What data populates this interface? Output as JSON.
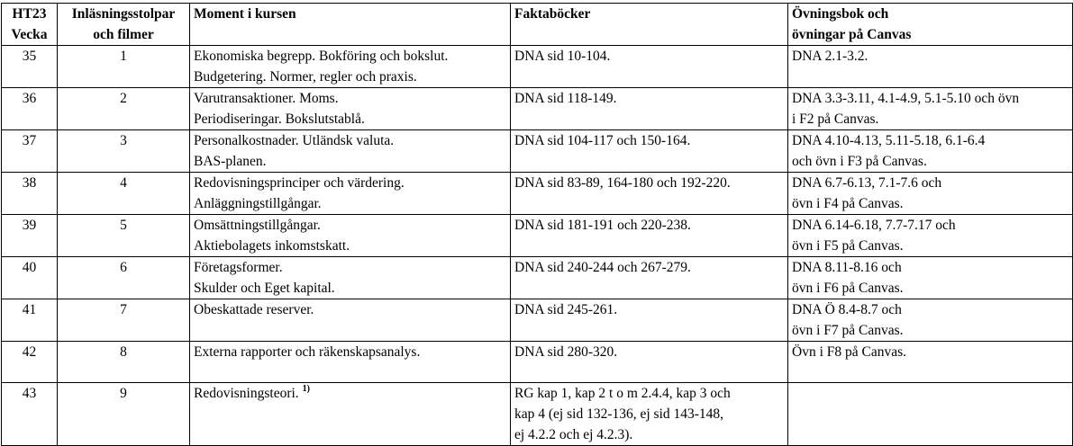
{
  "header": {
    "col1": [
      "HT23",
      "Vecka"
    ],
    "col2": [
      "Inläsningsstolpar",
      "och filmer"
    ],
    "col3": "Moment i kursen",
    "col4": "Faktaböcker",
    "col5": [
      "Övningsbok och",
      "övningar på Canvas"
    ]
  },
  "rows": [
    {
      "week": "35",
      "part": "1",
      "moment": [
        "Ekonomiska begrepp. Bokföring och bokslut.",
        "Budgetering. Normer, regler och praxis."
      ],
      "books": [
        "DNA sid 10-104."
      ],
      "exercises": [
        "DNA 2.1-3.2."
      ]
    },
    {
      "week": "36",
      "part": "2",
      "moment": [
        "Varutransaktioner. Moms.",
        "Periodiseringar. Bokslutstablå."
      ],
      "books": [
        "DNA sid 118-149."
      ],
      "exercises": [
        "DNA 3.3-3.11, 4.1-4.9, 5.1-5.10 och övn",
        "i F2 på Canvas."
      ]
    },
    {
      "week": "37",
      "part": "3",
      "moment": [
        "Personalkostnader. Utländsk valuta.",
        "BAS-planen."
      ],
      "books": [
        "DNA sid 104-117 och 150-164."
      ],
      "exercises": [
        "DNA 4.10-4.13, 5.11-5.18, 6.1-6.4",
        "och övn i F3 på Canvas."
      ]
    },
    {
      "week": "38",
      "part": "4",
      "moment": [
        "Redovisningsprinciper och värdering.",
        "Anläggningstillgångar."
      ],
      "books": [
        "DNA sid 83-89, 164-180 och 192-220."
      ],
      "exercises": [
        "DNA 6.7-6.13, 7.1-7.6 och",
        "övn i F4 på Canvas."
      ]
    },
    {
      "week": "39",
      "part": "5",
      "moment": [
        "Omsättningstillgångar.",
        "Aktiebolagets inkomstskatt."
      ],
      "books": [
        "DNA sid 181-191 och 220-238."
      ],
      "exercises": [
        "DNA 6.14-6.18, 7.7-7.17 och",
        "övn i F5 på Canvas."
      ]
    },
    {
      "week": "40",
      "part": "6",
      "moment": [
        "Företagsformer.",
        "Skulder och Eget kapital."
      ],
      "books": [
        "DNA sid 240-244 och 267-279."
      ],
      "exercises": [
        "DNA 8.11-8.16 och",
        "övn i F6 på Canvas."
      ]
    },
    {
      "week": "41",
      "part": "7",
      "moment": [
        "Obeskattade reserver."
      ],
      "books": [
        "DNA sid 245-261."
      ],
      "exercises": [
        "DNA Ö 8.4-8.7 och",
        "övn i F7 på Canvas."
      ]
    },
    {
      "week": "42",
      "part": "8",
      "moment": [
        "Externa rapporter och räkenskapsanalys."
      ],
      "books": [
        "DNA sid 280-320."
      ],
      "exercises": [
        "Övn i F8 på Canvas."
      ]
    },
    {
      "week": "43",
      "part": "9",
      "moment": [
        "Redovisningsteori."
      ],
      "moment_note": "1)",
      "books": [
        "RG kap 1, kap 2 t o m 2.4.4, kap 3 och",
        "kap 4 (ej sid 132-136, ej sid 143-148,",
        "ej 4.2.2 och ej 4.2.3)."
      ],
      "exercises": []
    }
  ]
}
